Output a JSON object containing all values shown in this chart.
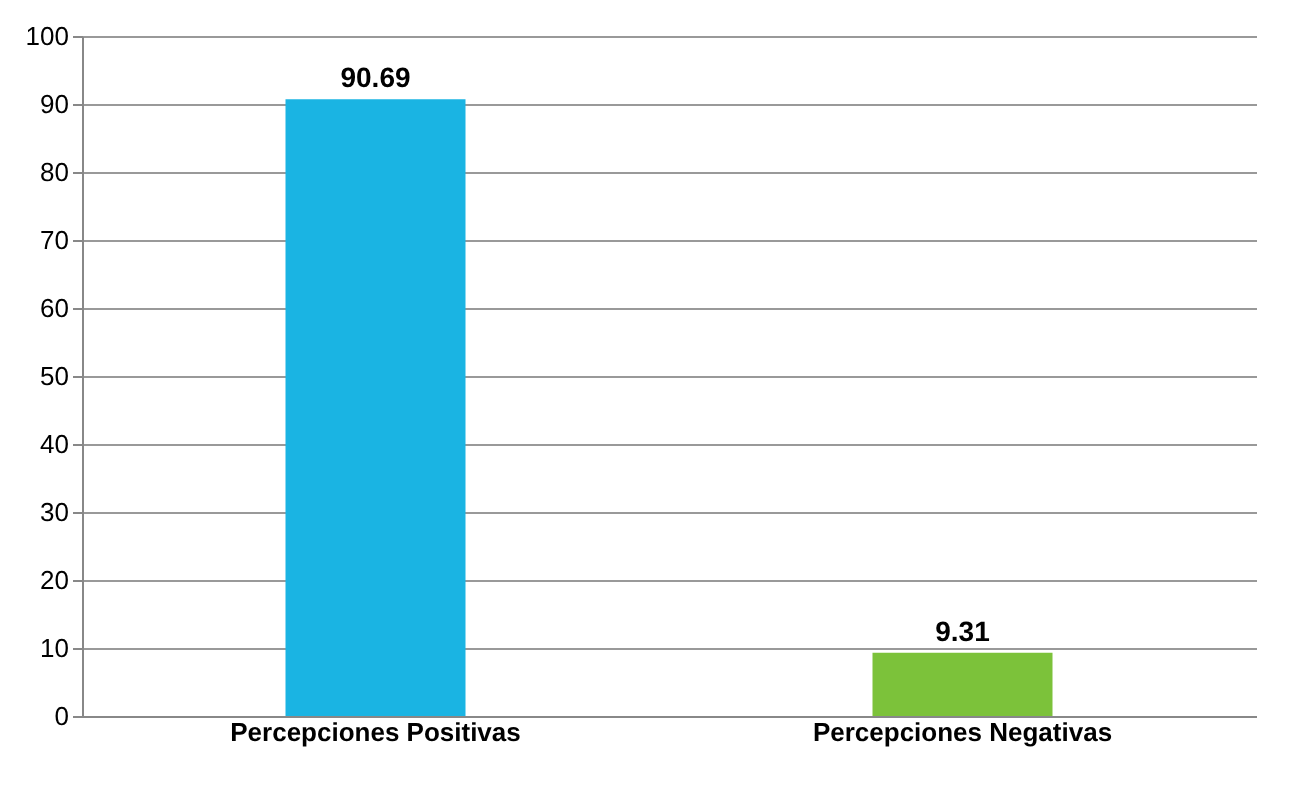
{
  "chart_data": {
    "type": "bar",
    "categories": [
      "Percepciones Positivas",
      "Percepciones Negativas"
    ],
    "values": [
      90.69,
      9.31
    ],
    "colors": [
      "#1ab4e3",
      "#7cc23a"
    ],
    "ylim": [
      0,
      100
    ],
    "yticks": [
      0,
      10,
      20,
      30,
      40,
      50,
      60,
      70,
      80,
      90,
      100
    ],
    "grid": "y",
    "data_labels": true
  }
}
